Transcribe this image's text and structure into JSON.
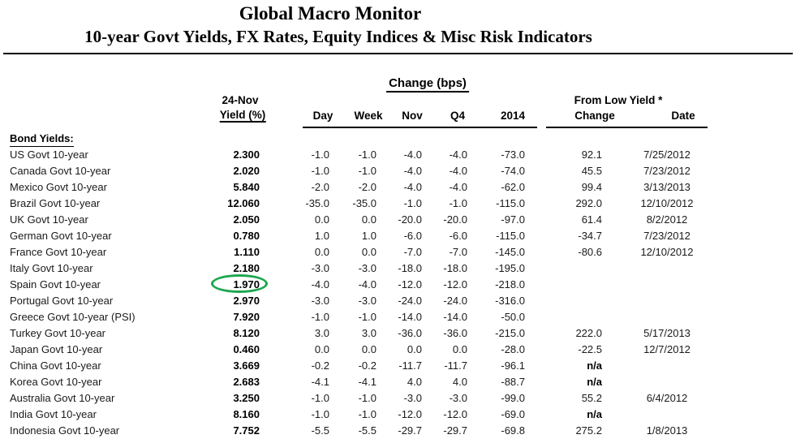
{
  "page": {
    "title": "Global Macro Monitor",
    "subtitle": "10-year Govt Yields, FX Rates, Equity Indices & Misc Risk Indicators"
  },
  "table": {
    "group_header": "Change (bps)",
    "headers": {
      "asof_top": "24-Nov",
      "asof_bottom": "Yield (%)",
      "day": "Day",
      "week": "Week",
      "nov": "Nov",
      "q4": "Q4",
      "y2014": "2014",
      "from_low_top": "From Low Yield *",
      "change": "Change",
      "date": "Date"
    },
    "section_label": "Bond Yields:",
    "rows": [
      {
        "label": "US Govt 10-year",
        "yield": "2.300",
        "day": "-1.0",
        "week": "-1.0",
        "nov": "-4.0",
        "q4": "-4.0",
        "y2014": "-73.0",
        "change": "92.1",
        "date": "7/25/2012"
      },
      {
        "label": "Canada Govt 10-year",
        "yield": "2.020",
        "day": "-1.0",
        "week": "-1.0",
        "nov": "-4.0",
        "q4": "-4.0",
        "y2014": "-74.0",
        "change": "45.5",
        "date": "7/23/2012"
      },
      {
        "label": "Mexico Govt 10-year",
        "yield": "5.840",
        "day": "-2.0",
        "week": "-2.0",
        "nov": "-4.0",
        "q4": "-4.0",
        "y2014": "-62.0",
        "change": "99.4",
        "date": "3/13/2013"
      },
      {
        "label": "Brazil Govt 10-year",
        "yield": "12.060",
        "day": "-35.0",
        "week": "-35.0",
        "nov": "-1.0",
        "q4": "-1.0",
        "y2014": "-115.0",
        "change": "292.0",
        "date": "12/10/2012"
      },
      {
        "label": "UK Govt 10-year",
        "yield": "2.050",
        "day": "0.0",
        "week": "0.0",
        "nov": "-20.0",
        "q4": "-20.0",
        "y2014": "-97.0",
        "change": "61.4",
        "date": "8/2/2012"
      },
      {
        "label": "German Govt 10-year",
        "yield": "0.780",
        "day": "1.0",
        "week": "1.0",
        "nov": "-6.0",
        "q4": "-6.0",
        "y2014": "-115.0",
        "change": "-34.7",
        "date": "7/23/2012"
      },
      {
        "label": "France Govt 10-year",
        "yield": "1.110",
        "day": "0.0",
        "week": "0.0",
        "nov": "-7.0",
        "q4": "-7.0",
        "y2014": "-145.0",
        "change": "-80.6",
        "date": "12/10/2012"
      },
      {
        "label": "Italy Govt 10-year",
        "yield": "2.180",
        "day": "-3.0",
        "week": "-3.0",
        "nov": "-18.0",
        "q4": "-18.0",
        "y2014": "-195.0",
        "change": "",
        "date": ""
      },
      {
        "label": "Spain Govt 10-year",
        "yield": "1.970",
        "day": "-4.0",
        "week": "-4.0",
        "nov": "-12.0",
        "q4": "-12.0",
        "y2014": "-218.0",
        "change": "",
        "date": ""
      },
      {
        "label": "Portugal Govt 10-year",
        "yield": "2.970",
        "day": "-3.0",
        "week": "-3.0",
        "nov": "-24.0",
        "q4": "-24.0",
        "y2014": "-316.0",
        "change": "",
        "date": ""
      },
      {
        "label": "Greece Govt 10-year (PSI)",
        "yield": "7.920",
        "day": "-1.0",
        "week": "-1.0",
        "nov": "-14.0",
        "q4": "-14.0",
        "y2014": "-50.0",
        "change": "",
        "date": ""
      },
      {
        "label": "Turkey Govt 10-year",
        "yield": "8.120",
        "day": "3.0",
        "week": "3.0",
        "nov": "-36.0",
        "q4": "-36.0",
        "y2014": "-215.0",
        "change": "222.0",
        "date": "5/17/2013"
      },
      {
        "label": "Japan Govt 10-year",
        "yield": "0.460",
        "day": "0.0",
        "week": "0.0",
        "nov": "0.0",
        "q4": "0.0",
        "y2014": "-28.0",
        "change": "-22.5",
        "date": "12/7/2012"
      },
      {
        "label": "China Govt 10-year",
        "yield": "3.669",
        "day": "-0.2",
        "week": "-0.2",
        "nov": "-11.7",
        "q4": "-11.7",
        "y2014": "-96.1",
        "change": "n/a",
        "date": ""
      },
      {
        "label": "Korea Govt 10-year",
        "yield": "2.683",
        "day": "-4.1",
        "week": "-4.1",
        "nov": "4.0",
        "q4": "4.0",
        "y2014": "-88.7",
        "change": "n/a",
        "date": ""
      },
      {
        "label": "Australia Govt 10-year",
        "yield": "3.250",
        "day": "-1.0",
        "week": "-1.0",
        "nov": "-3.0",
        "q4": "-3.0",
        "y2014": "-99.0",
        "change": "55.2",
        "date": "6/4/2012"
      },
      {
        "label": "India Govt 10-year",
        "yield": "8.160",
        "day": "-1.0",
        "week": "-1.0",
        "nov": "-12.0",
        "q4": "-12.0",
        "y2014": "-69.0",
        "change": "n/a",
        "date": ""
      },
      {
        "label": "Indonesia Govt 10-year",
        "yield": "7.752",
        "day": "-5.5",
        "week": "-5.5",
        "nov": "-29.7",
        "q4": "-29.7",
        "y2014": "-69.8",
        "change": "275.2",
        "date": "1/8/2013"
      }
    ]
  },
  "annotation": {
    "type": "ellipse-highlight",
    "highlighted_row": "Spain Govt 10-year",
    "highlighted_column": "yield",
    "highlighted_value": "1.970",
    "color": "#1ca64e"
  },
  "colors": {
    "background": "#ffffff",
    "text": "#000000",
    "highlight_green": "#1ca64e"
  }
}
